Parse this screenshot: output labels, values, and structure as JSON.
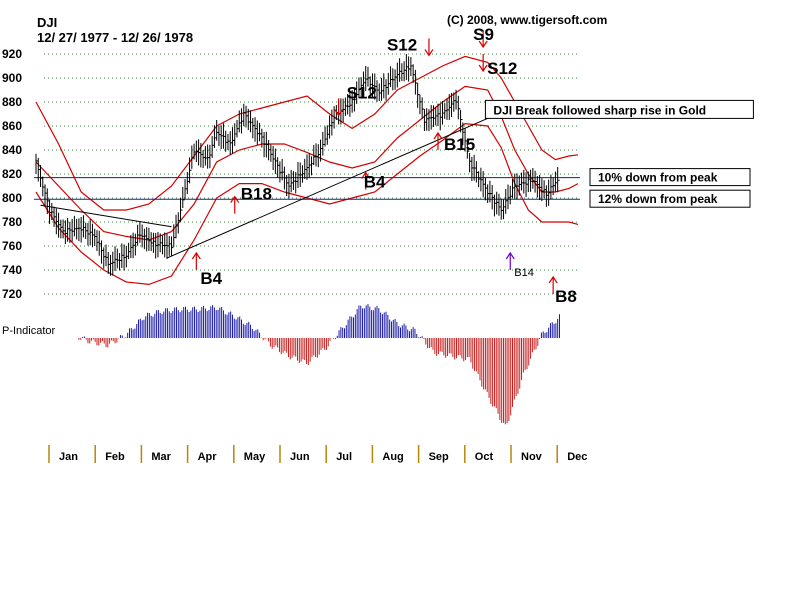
{
  "chart_data": {
    "type": "line",
    "symbol": "DJI",
    "date_range": "12/ 27/ 1977 - 12/ 26/ 1978",
    "copyright": "(C) 2008, www.tigersoft.com",
    "y_ticks": [
      920,
      900,
      880,
      860,
      840,
      820,
      800,
      780,
      760,
      740,
      720
    ],
    "ylim": [
      720,
      920
    ],
    "months": [
      "Jan",
      "Feb",
      "Mar",
      "Apr",
      "May",
      "Jun",
      "Jul",
      "Aug",
      "Sep",
      "Oct",
      "Nov",
      "Dec"
    ],
    "price_series": {
      "name": "DJI",
      "x_month": [
        0.0,
        0.3,
        0.6,
        1.0,
        1.3,
        1.6,
        2.0,
        2.3,
        2.6,
        3.0,
        3.2,
        3.5,
        3.8,
        4.0,
        4.3,
        4.6,
        5.0,
        5.3,
        5.6,
        6.0,
        6.3,
        6.6,
        7.0,
        7.3,
        7.6,
        8.0,
        8.3,
        8.6,
        9.0,
        9.3,
        9.6,
        10.0,
        10.3,
        10.6,
        11.0,
        11.3,
        11.6
      ],
      "close": [
        830,
        790,
        772,
        775,
        768,
        745,
        752,
        770,
        762,
        760,
        790,
        840,
        832,
        855,
        845,
        870,
        850,
        830,
        810,
        825,
        840,
        868,
        880,
        900,
        888,
        903,
        910,
        865,
        870,
        882,
        830,
        805,
        790,
        810,
        815,
        803,
        818
      ]
    },
    "bands": {
      "upper": [
        880,
        845,
        805,
        790,
        790,
        795,
        810,
        835,
        860,
        870,
        875,
        880,
        885,
        870,
        858,
        870,
        890,
        900,
        910,
        918,
        913,
        900,
        880,
        860,
        840,
        832,
        835,
        836
      ],
      "middle": [
        830,
        810,
        790,
        772,
        768,
        765,
        772,
        795,
        830,
        840,
        845,
        845,
        838,
        830,
        825,
        830,
        850,
        865,
        880,
        893,
        890,
        868,
        840,
        820,
        805,
        805,
        808,
        812
      ],
      "lower": [
        805,
        775,
        755,
        740,
        730,
        728,
        735,
        765,
        800,
        812,
        812,
        805,
        800,
        795,
        800,
        805,
        820,
        835,
        848,
        862,
        860,
        842,
        812,
        790,
        780,
        780,
        780,
        778
      ],
      "x_month": [
        0.0,
        0.5,
        1.0,
        1.5,
        2.0,
        2.5,
        3.0,
        3.5,
        4.0,
        4.5,
        5.0,
        5.5,
        6.0,
        6.5,
        7.0,
        7.5,
        8.0,
        8.5,
        9.0,
        9.5,
        10.0,
        10.3,
        10.6,
        10.9,
        11.2,
        11.5,
        11.8,
        12.0
      ]
    },
    "reference_lines": [
      {
        "label": "10% down from peak",
        "value": 817
      },
      {
        "label": "12% down from peak",
        "value": 799
      }
    ],
    "trend_lines": [
      {
        "from": [
          0.1,
          794
        ],
        "to": [
          3.0,
          776
        ]
      },
      {
        "from": [
          2.9,
          750
        ],
        "to": [
          10.1,
          868
        ]
      }
    ],
    "signals": [
      {
        "label": "B4",
        "type": "buy",
        "x_month": 3.55,
        "value": 745
      },
      {
        "label": "B18",
        "type": "buy",
        "x_month": 4.4,
        "value": 792
      },
      {
        "label": "S12",
        "type": "sell",
        "x_month": 6.7,
        "value": 878
      },
      {
        "label": "B4",
        "type": "buy",
        "x_month": 7.3,
        "value": 812
      },
      {
        "label": "S12",
        "type": "sell",
        "x_month": 8.7,
        "value": 928
      },
      {
        "label": "B15",
        "type": "buy",
        "x_month": 8.9,
        "value": 845
      },
      {
        "label": "S9",
        "type": "sell",
        "x_month": 9.9,
        "value": 935
      },
      {
        "label": "S12",
        "type": "sell",
        "x_month": 9.9,
        "value": 915
      },
      {
        "label": "B14",
        "type": "buy",
        "x_month": 10.5,
        "value": 745
      },
      {
        "label": "B8",
        "type": "buy",
        "x_month": 11.45,
        "value": 725
      }
    ],
    "annotations": [
      {
        "text": "DJI Break followed sharp rise in Gold",
        "x_month": 9.95,
        "value": 873
      }
    ],
    "indicator": {
      "name": "P-Indicator",
      "x_month": [
        0.0,
        0.4,
        0.8,
        1.2,
        1.6,
        2.0,
        2.4,
        2.8,
        3.2,
        3.6,
        4.0,
        4.4,
        4.8,
        5.2,
        5.6,
        6.0,
        6.4,
        6.8,
        7.2,
        7.6,
        8.0,
        8.4,
        8.8,
        9.2,
        9.6,
        10.0,
        10.4,
        10.8,
        11.2,
        11.6,
        12.0
      ],
      "values": [
        -0.4,
        0.5,
        0.1,
        -0.1,
        -0.2,
        0.1,
        0.6,
        0.75,
        0.8,
        0.8,
        0.85,
        0.6,
        0.3,
        -0.2,
        -0.5,
        -0.7,
        -0.3,
        0.3,
        0.9,
        0.8,
        0.4,
        0.2,
        -0.4,
        -0.5,
        -0.6,
        -1.6,
        -2.5,
        -1.0,
        0.1,
        0.6,
        -0.1
      ]
    }
  }
}
